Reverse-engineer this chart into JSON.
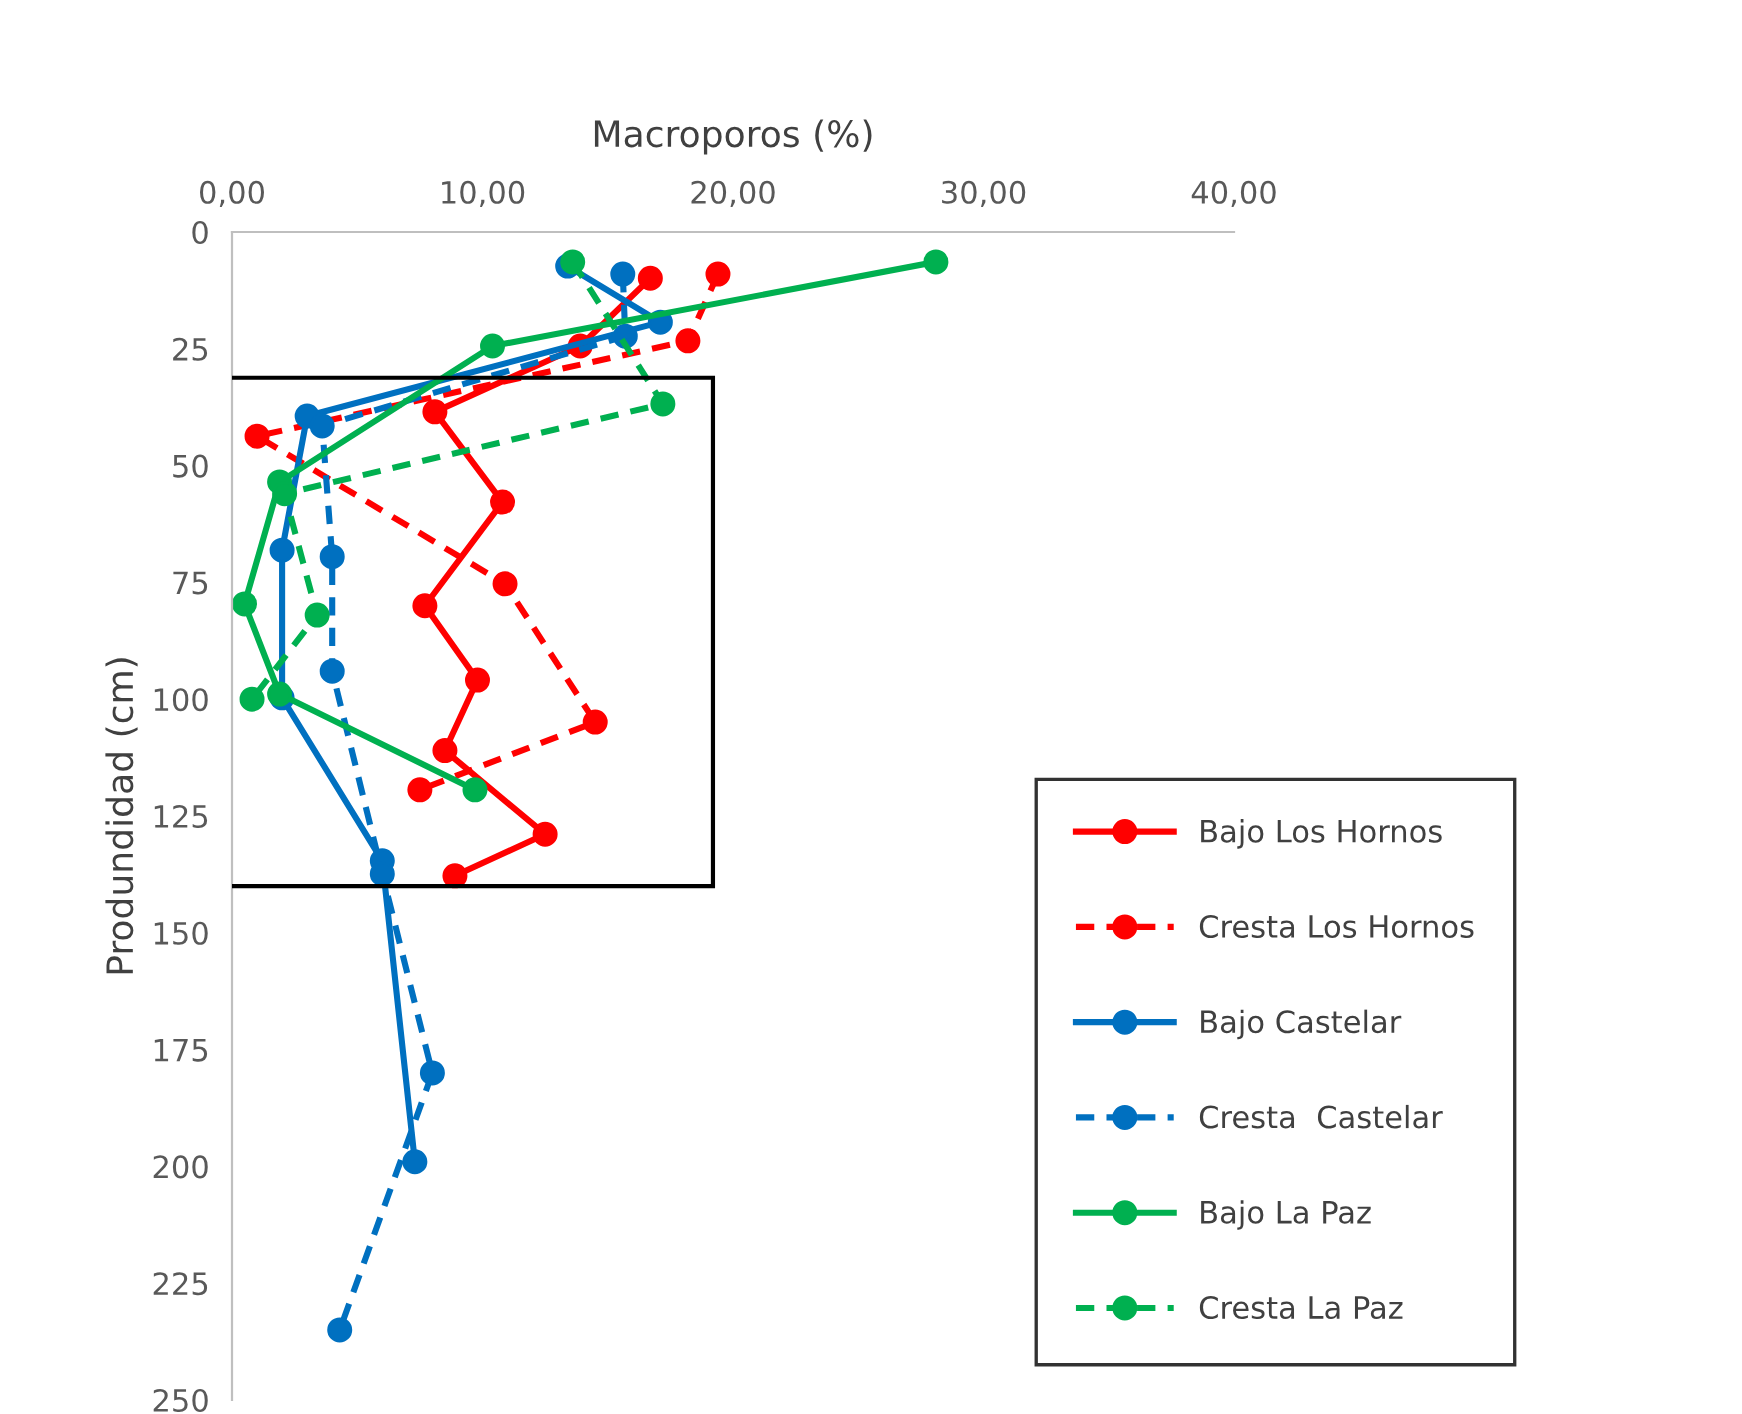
{
  "chart_data": {
    "type": "line",
    "xlabel": "Macroporos (%)",
    "ylabel": "Produndidad (cm)",
    "xlim": [
      0,
      40
    ],
    "xticks": [
      {
        "value": 0,
        "label": "0,00"
      },
      {
        "value": 10,
        "label": "10,00"
      },
      {
        "value": 20,
        "label": "20,00"
      },
      {
        "value": 30,
        "label": "30,00"
      },
      {
        "value": 40,
        "label": "40,00"
      }
    ],
    "ylim": [
      250,
      0
    ],
    "yticks": [
      0,
      25,
      50,
      75,
      100,
      125,
      150,
      175,
      200,
      225,
      250
    ],
    "grid": false,
    "legend": "bottom right",
    "marker": "circle",
    "series": [
      {
        "name": "Bajo Los Hornos",
        "color": "#ff0000",
        "line_style": "solid",
        "x": [
          16.7,
          13.9,
          8.1,
          10.8,
          7.7,
          9.8,
          8.5,
          12.5,
          8.9
        ],
        "values": [
          9.9,
          24.4,
          38.5,
          57.8,
          80,
          95.9,
          111,
          128.9,
          137.8
        ]
      },
      {
        "name": "Cresta Los Hornos",
        "color": "#ff0000",
        "line_style": "dashed",
        "x": [
          19.4,
          18.2,
          1.0,
          10.9,
          14.5,
          7.5
        ],
        "values": [
          9,
          23.3,
          43.7,
          75.3,
          104.9,
          119.4
        ]
      },
      {
        "name": "Bajo Castelar",
        "color": "#0070c0",
        "line_style": "solid",
        "x": [
          13.4,
          17.1,
          3.0,
          2.0,
          2.0,
          6.0,
          7.3
        ],
        "values": [
          7.3,
          19.3,
          39.4,
          68.1,
          99.7,
          134.6,
          199
        ]
      },
      {
        "name": "Cresta  Castelar",
        "color": "#0070c0",
        "line_style": "dashed",
        "x": [
          15.6,
          15.7,
          3.6,
          4.0,
          4.0,
          6.0,
          8.0,
          4.3
        ],
        "values": [
          9,
          22.3,
          41.5,
          69.5,
          94,
          137.4,
          180,
          235
        ]
      },
      {
        "name": "Bajo La Paz",
        "color": "#00b050",
        "line_style": "solid",
        "x": [
          28.1,
          10.4,
          1.9,
          0.5,
          1.9,
          9.7
        ],
        "values": [
          6.4,
          24.4,
          53.5,
          79.6,
          98.9,
          119.4
        ]
      },
      {
        "name": "Cresta La Paz",
        "color": "#00b050",
        "line_style": "dashed",
        "x": [
          13.6,
          17.2,
          2.1,
          3.4,
          0.8
        ],
        "values": [
          6.4,
          36.8,
          56,
          82,
          100
        ]
      }
    ]
  }
}
